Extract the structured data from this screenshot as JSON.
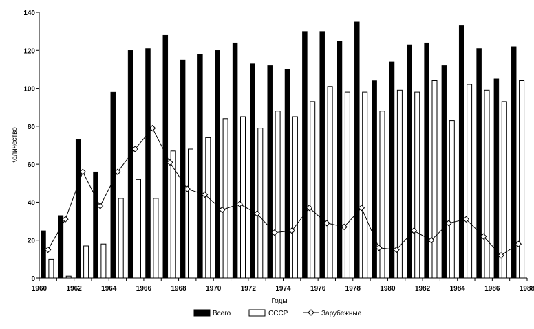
{
  "chart_data": {
    "type": "bar",
    "xlabel": "Годы",
    "ylabel": "Количество",
    "ylim": [
      0,
      140
    ],
    "yticks": [
      "0",
      "20",
      "40",
      "60",
      "80",
      "100",
      "120",
      "140"
    ],
    "xlim": [
      1960,
      1988
    ],
    "xticks": [
      "1960",
      "1962",
      "1964",
      "1966",
      "1968",
      "1970",
      "1972",
      "1974",
      "1976",
      "1978",
      "1980",
      "1982",
      "1984",
      "1986",
      "1988"
    ],
    "grid": false,
    "legend_position": "bottom",
    "categories": [
      1960,
      1961,
      1962,
      1963,
      1964,
      1965,
      1966,
      1967,
      1968,
      1969,
      1970,
      1971,
      1972,
      1973,
      1974,
      1975,
      1976,
      1977,
      1978,
      1979,
      1980,
      1981,
      1982,
      1983,
      1984,
      1985,
      1986,
      1987
    ],
    "series": [
      {
        "name": "Всего",
        "kind": "bar",
        "color": "#000000",
        "values": [
          25,
          33,
          73,
          56,
          98,
          120,
          121,
          128,
          115,
          118,
          120,
          124,
          113,
          112,
          110,
          130,
          130,
          125,
          135,
          104,
          114,
          123,
          124,
          112,
          133,
          121,
          105,
          122
        ]
      },
      {
        "name": "СССР",
        "kind": "bar",
        "color": "#ffffff",
        "values": [
          10,
          1,
          17,
          18,
          42,
          52,
          42,
          67,
          68,
          74,
          84,
          85,
          79,
          88,
          85,
          93,
          101,
          98,
          98,
          88,
          99,
          98,
          104,
          83,
          102,
          99,
          93,
          104
        ]
      },
      {
        "name": "Зарубежные",
        "kind": "line",
        "marker": "diamond",
        "color": "#000000",
        "values": [
          15,
          31,
          56,
          38,
          56,
          68,
          79,
          61,
          47,
          44,
          36,
          39,
          34,
          24,
          25,
          37,
          29,
          27,
          37,
          16,
          15,
          25,
          20,
          29,
          31,
          22,
          12,
          18
        ]
      }
    ]
  }
}
